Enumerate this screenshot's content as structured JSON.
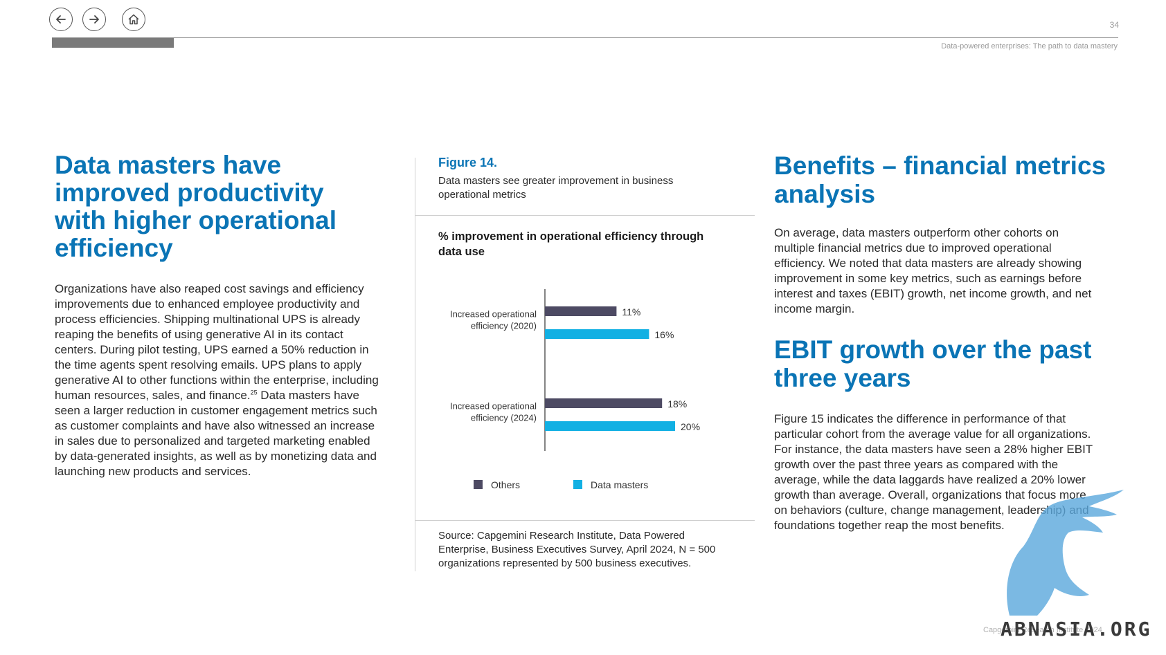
{
  "nav": {
    "back_icon": "arrow-left-icon",
    "forward_icon": "arrow-right-icon",
    "home_icon": "home-icon"
  },
  "header": {
    "page_number": "34",
    "doc_title": "Data-powered enterprises: The path to data mastery"
  },
  "left": {
    "heading": "Data masters have improved productivity with higher operational efficiency",
    "body_part1": "Organizations have also reaped cost savings and efficiency improvements due to enhanced employee productivity and process efficiencies. Shipping multinational UPS is already reaping the benefits of using generative AI in its contact centers. During pilot testing, UPS earned a 50% reduction in the time agents spent resolving emails. UPS plans to apply generative AI to other functions within the enterprise, including human resources, sales, and finance.",
    "footnote": "25",
    "body_part2": " Data masters have seen a larger reduction in customer engagement metrics such as customer complaints and have also witnessed an increase in sales due to personalized and targeted marketing enabled by data-generated insights, as well as by monetizing data and launching new products and services."
  },
  "figure": {
    "label": "Figure 14.",
    "caption": "Data masters see greater improvement in business operational metrics",
    "source": "Source: Capgemini Research Institute, Data Powered Enterprise, Business Executives Survey, April 2024, N = 500 organizations represented by 500 business executives."
  },
  "chart_data": {
    "type": "bar",
    "orientation": "horizontal",
    "title": "% improvement in operational efficiency through data use",
    "categories": [
      [
        "Increased operational",
        "efficiency (2020)"
      ],
      [
        "Increased operational",
        "efficiency (2024)"
      ]
    ],
    "series": [
      {
        "name": "Others",
        "values": [
          11,
          18
        ],
        "labels": [
          "11%",
          "18%"
        ],
        "color": "#4d4a63"
      },
      {
        "name": "Data masters",
        "values": [
          16,
          20
        ],
        "labels": [
          "16%",
          "20%"
        ],
        "color": "#12b0e3"
      }
    ],
    "xlim": [
      0,
      20
    ],
    "legend_position": "bottom",
    "grid": false
  },
  "right": {
    "heading1": "Benefits – financial metrics analysis",
    "para1": "On average, data masters outperform other cohorts on multiple financial metrics due to improved operational efficiency. We noted that data masters are already showing improvement in some key metrics, such as earnings before interest and taxes (EBIT) growth, net income growth, and net income margin.",
    "heading2": "EBIT growth over the past three years",
    "para2": "Figure 15 indicates the difference in performance of that particular cohort from the average value for all organizations. For instance, the data masters have seen a 28% higher EBIT growth over the past three years as compared with the average, while the data laggards have realized a 20% lower growth than average. Overall, organizations that focus more on behaviors (culture, change management, leadership) and foundations together reap the most benefits."
  },
  "footer": {
    "text": "Capgemini Research Institute 2024"
  },
  "watermark": {
    "text": "ABNASIA.ORG",
    "icon": "griffin-logo-icon"
  }
}
